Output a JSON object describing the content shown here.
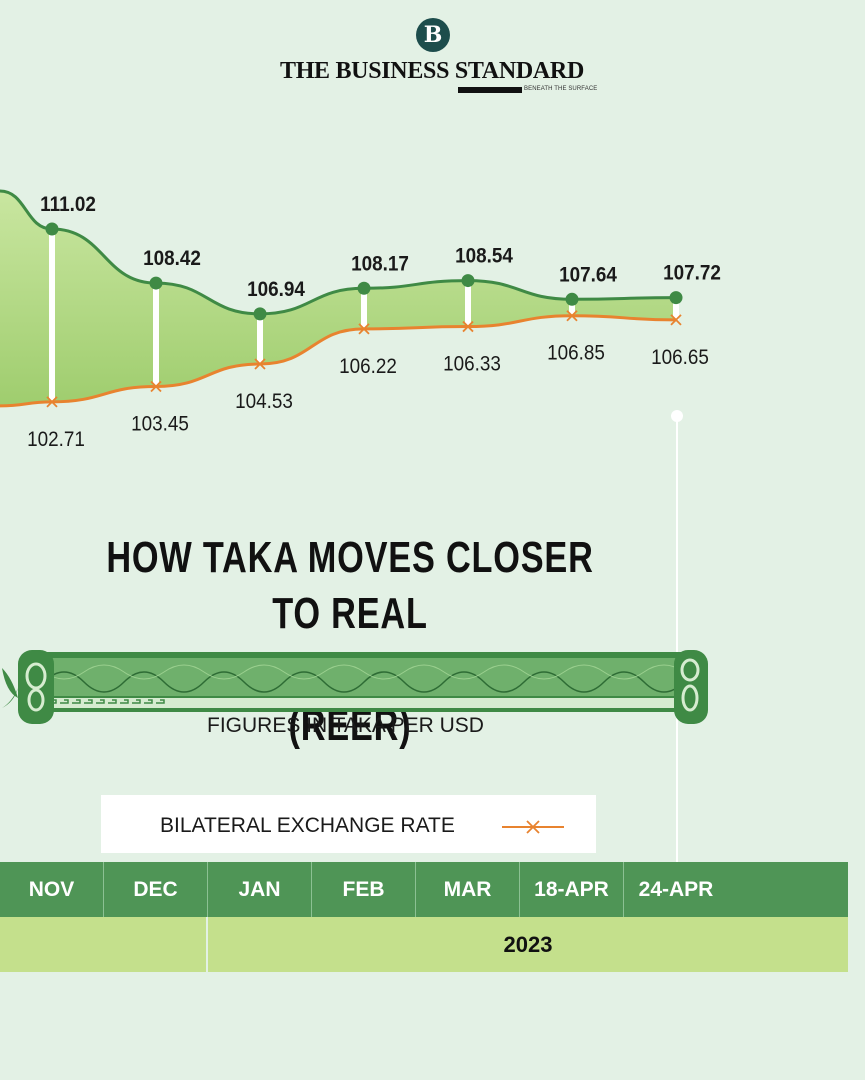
{
  "brand": {
    "logo_letter": "B",
    "name": "THE BUSINESS STANDARD",
    "tagline": "BENEATH THE SURFACE"
  },
  "headline": {
    "line1": "HOW TAKA MOVES CLOSER TO REAL",
    "line2": "EFFECTIVE EXCHANGE RATE (REER)"
  },
  "subtitle": "FIGURES IN TAKA PER USD",
  "legend": {
    "label": "BILATERAL EXCHANGE RATE"
  },
  "colors": {
    "background": "#e3f1e5",
    "reer_line": "#3f8a45",
    "bilateral_line": "#e8832f",
    "fill": "#b6db82",
    "month_bar": "#4f9556",
    "year_bar": "#c4e08c"
  },
  "chart_data": {
    "type": "area",
    "categories": [
      "NOV",
      "DEC",
      "JAN",
      "FEB",
      "MAR",
      "18-APR",
      "24-APR"
    ],
    "year_label": "2023",
    "series": [
      {
        "values": [
          111.02,
          108.42,
          106.94,
          108.17,
          108.54,
          107.64,
          107.72
        ]
      },
      {
        "name": "BILATERAL EXCHANGE RATE",
        "values": [
          102.71,
          103.45,
          104.53,
          106.22,
          106.33,
          106.85,
          106.65
        ]
      }
    ],
    "title": "HOW TAKA MOVES CLOSER TO REAL EFFECTIVE EXCHANGE RATE (REER)",
    "subtitle": "FIGURES IN TAKA PER USD",
    "grid": false,
    "legend_position": "bottom"
  }
}
